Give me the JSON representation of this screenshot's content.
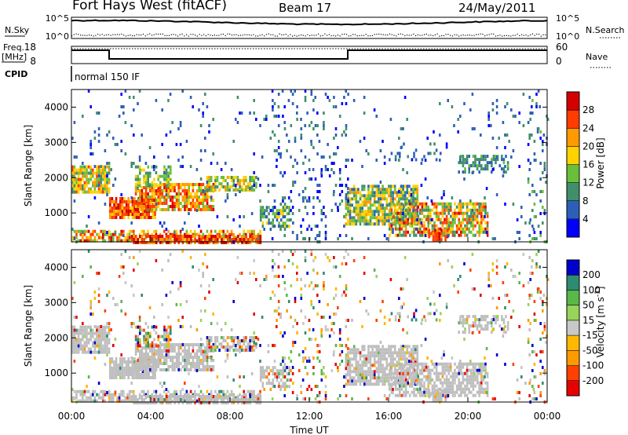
{
  "header": {
    "station": "Fort Hays West (fitACF)",
    "beam": "Beam 17",
    "date": "24/May/2011"
  },
  "colors": {
    "power_scale": [
      "#0000ff",
      "#2e5fb8",
      "#3f8f6c",
      "#6abf3a",
      "#ffd200",
      "#ff9a00",
      "#ff3c00",
      "#d40000"
    ],
    "velocity_scale": [
      "#e60000",
      "#ff4000",
      "#ff9a00",
      "#ffb800",
      "#c8c8c8",
      "#99d35a",
      "#58b848",
      "#2f8a72",
      "#0000cc"
    ],
    "ground_scatter": "#bebebe"
  },
  "panels": {
    "noise": {
      "left_label": "N.Sky",
      "right_label": "N.Search",
      "left_ticks": [
        "10^5",
        "10^0"
      ],
      "right_ticks": [
        "10^5",
        "10^0"
      ]
    },
    "freq": {
      "left_label_1": "Freq.",
      "left_label_2": "[MHz]",
      "right_label": "Nave",
      "left_ticks": [
        "18",
        "8"
      ],
      "right_ticks": [
        "60",
        "0"
      ]
    },
    "cpid": {
      "label": "CPID",
      "text": "normal 150 IF"
    }
  },
  "chart_data": [
    {
      "type": "heatmap",
      "name_hint": "power",
      "xlabel": "",
      "ylabel": "Slant Range [km]",
      "x_range_hours": [
        0,
        24
      ],
      "y_range_km": [
        180,
        4500
      ],
      "y_ticks": [
        "1000",
        "2000",
        "3000",
        "4000"
      ],
      "colorbar_label": "Power [dB]",
      "colorbar_ticks": [
        "4",
        "8",
        "12",
        "16",
        "20",
        "24",
        "28"
      ],
      "colorbar_range": [
        0,
        32
      ]
    },
    {
      "type": "heatmap",
      "name_hint": "velocity",
      "xlabel": "Time UT",
      "ylabel": "Slant Range [km]",
      "x_range_hours": [
        0,
        24
      ],
      "y_range_km": [
        180,
        4500
      ],
      "x_ticks": [
        "00:00",
        "04:00",
        "08:00",
        "12:00",
        "16:00",
        "20:00",
        "00:00"
      ],
      "y_ticks": [
        "1000",
        "2000",
        "3000",
        "4000"
      ],
      "colorbar_label": "Velocity [m s^-1]",
      "colorbar_ticks": [
        "-200",
        "-100",
        "-50",
        "-15",
        "15",
        "50",
        "100",
        "200"
      ],
      "colorbar_range": [
        -250,
        250
      ]
    }
  ],
  "scatter_regions": [
    {
      "t0": 0.0,
      "t1": 1.9,
      "r0": 1550,
      "r1": 2350,
      "dens": 0.85,
      "pw": [
        10,
        26
      ],
      "gs": 0.9
    },
    {
      "t0": 1.9,
      "t1": 4.2,
      "r0": 900,
      "r1": 1450,
      "dens": 0.9,
      "pw": [
        18,
        32
      ],
      "gs": 0.95
    },
    {
      "t0": 3.2,
      "t1": 7.2,
      "r0": 1100,
      "r1": 1850,
      "dens": 0.8,
      "pw": [
        14,
        30
      ],
      "gs": 0.9
    },
    {
      "t0": 6.8,
      "t1": 9.3,
      "r0": 1650,
      "r1": 2050,
      "dens": 0.75,
      "pw": [
        8,
        22
      ],
      "gs": 0.6
    },
    {
      "t0": 3.2,
      "t1": 5.0,
      "r0": 1750,
      "r1": 2350,
      "dens": 0.55,
      "pw": [
        8,
        20
      ],
      "gs": 0.2
    },
    {
      "t0": 0.0,
      "t1": 9.5,
      "r0": 180,
      "r1": 520,
      "dens": 0.6,
      "pw": [
        12,
        30
      ],
      "gs": 0.8
    },
    {
      "t0": 3.0,
      "t1": 9.5,
      "r0": 180,
      "r1": 380,
      "dens": 0.8,
      "pw": [
        20,
        32
      ],
      "gs": 0.9
    },
    {
      "t0": 9.5,
      "t1": 11.0,
      "r0": 650,
      "r1": 1200,
      "dens": 0.55,
      "pw": [
        6,
        18
      ],
      "gs": 0.85
    },
    {
      "t0": 13.8,
      "t1": 17.5,
      "r0": 700,
      "r1": 1800,
      "dens": 0.75,
      "pw": [
        6,
        22
      ],
      "gs": 0.9
    },
    {
      "t0": 16.0,
      "t1": 21.0,
      "r0": 350,
      "r1": 1300,
      "dens": 0.7,
      "pw": [
        8,
        30
      ],
      "gs": 0.9
    },
    {
      "t0": 18.0,
      "t1": 19.0,
      "r0": 250,
      "r1": 550,
      "dens": 0.75,
      "pw": [
        22,
        32
      ],
      "gs": 0.9
    },
    {
      "t0": 19.5,
      "t1": 22.0,
      "r0": 2200,
      "r1": 2650,
      "dens": 0.55,
      "pw": [
        4,
        14
      ],
      "gs": 0.85
    },
    {
      "t0": 16.0,
      "t1": 19.0,
      "r0": 2500,
      "r1": 3000,
      "dens": 0.2,
      "pw": [
        2,
        10
      ],
      "gs": 0.3
    },
    {
      "t0": 0.0,
      "t1": 24.0,
      "r0": 180,
      "r1": 4500,
      "dens": 0.03,
      "pw": [
        2,
        10
      ],
      "gs": 0.2
    },
    {
      "t0": 10.0,
      "t1": 14.0,
      "r0": 180,
      "r1": 4500,
      "dens": 0.09,
      "pw": [
        2,
        12
      ],
      "gs": 0.05
    },
    {
      "t0": 23.0,
      "t1": 24.0,
      "r0": 180,
      "r1": 4500,
      "dens": 0.12,
      "pw": [
        2,
        14
      ],
      "gs": 0.05
    }
  ],
  "footer": {
    "time_label": "Time UT"
  }
}
